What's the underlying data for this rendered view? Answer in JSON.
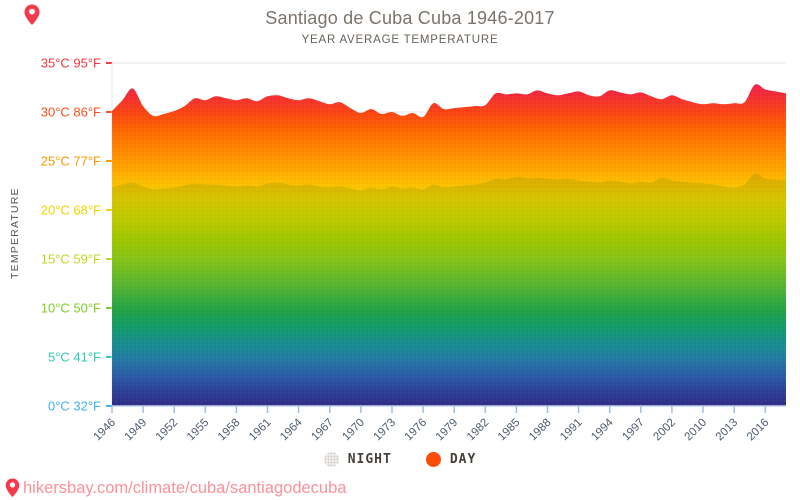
{
  "header": {},
  "y_axis": {
    "title": "TEMPERATURE"
  },
  "legend": {
    "night_label": "NIGHT",
    "day_label": "DAY"
  },
  "footer": {
    "url": "hikersbay.com/climate/cuba/santiagodecuba"
  },
  "colors": {
    "day_dot": "#fb4d07",
    "night_dot": "#f0eeea",
    "pin": "#f4394f",
    "footer_link": "#fb919b",
    "grid": "#e4e4e4",
    "x_axis_line": "#bdd3ec",
    "x_tick": "#9fc0e6",
    "x_label": "#4a5a6e",
    "night_shade": "#3a6e00"
  },
  "chart_data": {
    "type": "area",
    "title": "Santiago de Cuba Cuba 1946-2017",
    "subtitle": "YEAR AVERAGE TEMPERATURE",
    "ylabel": "TEMPERATURE",
    "xlabel": "",
    "ylim": [
      0,
      35
    ],
    "grid": true,
    "legend_position": "bottom",
    "x_tick_labels": [
      "1946",
      "1949",
      "1952",
      "1955",
      "1958",
      "1961",
      "1964",
      "1967",
      "1970",
      "1973",
      "1976",
      "1979",
      "1982",
      "1985",
      "1988",
      "1991",
      "1994",
      "1997",
      "2002",
      "2010",
      "2013",
      "2016"
    ],
    "points_per_label": 3,
    "y_ticks": [
      {
        "value": 35,
        "label": "35°C 95°F",
        "color": "#f93742"
      },
      {
        "value": 30,
        "label": "30°C 86°F",
        "color": "#fa4f1d"
      },
      {
        "value": 25,
        "label": "25°C 77°F",
        "color": "#ff9800"
      },
      {
        "value": 20,
        "label": "20°C 68°F",
        "color": "#eed500"
      },
      {
        "value": 15,
        "label": "15°C 59°F",
        "color": "#b8da25"
      },
      {
        "value": 10,
        "label": "10°C 50°F",
        "color": "#7fce2a"
      },
      {
        "value": 5,
        "label": "5°C 41°F",
        "color": "#2fc9b2"
      },
      {
        "value": 0,
        "label": "0°C 32°F",
        "color": "#3eb2f3"
      }
    ],
    "series": [
      {
        "name": "DAY",
        "values": [
          30.1,
          31.2,
          32.4,
          30.6,
          29.6,
          29.8,
          30.1,
          30.6,
          31.4,
          31.2,
          31.6,
          31.4,
          31.2,
          31.4,
          31.1,
          31.6,
          31.7,
          31.4,
          31.2,
          31.4,
          31.1,
          30.8,
          31.0,
          30.4,
          29.9,
          30.3,
          29.8,
          30.0,
          29.6,
          29.9,
          29.5,
          30.9,
          30.3,
          30.4,
          30.5,
          30.6,
          30.7,
          31.9,
          31.8,
          31.9,
          31.8,
          32.2,
          31.9,
          31.7,
          31.9,
          32.1,
          31.7,
          31.6,
          32.2,
          32.0,
          31.8,
          32.0,
          31.6,
          31.3,
          31.7,
          31.3,
          31.0,
          30.8,
          30.9,
          30.8,
          30.9,
          31.0,
          32.8,
          32.3,
          32.1,
          31.9
        ]
      },
      {
        "name": "NIGHT",
        "values": [
          22.3,
          22.6,
          22.8,
          22.4,
          22.1,
          22.2,
          22.3,
          22.5,
          22.7,
          22.6,
          22.6,
          22.5,
          22.4,
          22.5,
          22.4,
          22.7,
          22.8,
          22.6,
          22.5,
          22.6,
          22.4,
          22.3,
          22.4,
          22.2,
          22.0,
          22.3,
          22.1,
          22.4,
          22.2,
          22.3,
          22.1,
          22.6,
          22.3,
          22.4,
          22.5,
          22.6,
          22.8,
          23.2,
          23.1,
          23.4,
          23.2,
          23.3,
          23.2,
          23.1,
          23.2,
          23.0,
          22.9,
          22.8,
          23.0,
          22.9,
          22.7,
          22.9,
          22.8,
          23.3,
          23.0,
          22.9,
          22.8,
          22.7,
          22.6,
          22.4,
          22.3,
          22.6,
          23.7,
          23.2,
          23.1,
          23.0
        ]
      }
    ],
    "gradient_stops": [
      [
        0.0,
        "#e91e50"
      ],
      [
        0.057,
        "#ee2450"
      ],
      [
        0.086,
        "#f1283c"
      ],
      [
        0.143,
        "#fa4414"
      ],
      [
        0.2,
        "#fd6a00"
      ],
      [
        0.286,
        "#ff9800"
      ],
      [
        0.343,
        "#fdbb00"
      ],
      [
        0.4,
        "#f3d600"
      ],
      [
        0.457,
        "#d8dc00"
      ],
      [
        0.514,
        "#b4d800"
      ],
      [
        0.571,
        "#97d41e"
      ],
      [
        0.643,
        "#62c439"
      ],
      [
        0.714,
        "#22ad52"
      ],
      [
        0.771,
        "#0ba37e"
      ],
      [
        0.814,
        "#1295a8"
      ],
      [
        0.857,
        "#1f80c4"
      ],
      [
        0.914,
        "#2957c6"
      ],
      [
        0.957,
        "#2c38b2"
      ],
      [
        1.0,
        "#2f1ea3"
      ]
    ]
  }
}
